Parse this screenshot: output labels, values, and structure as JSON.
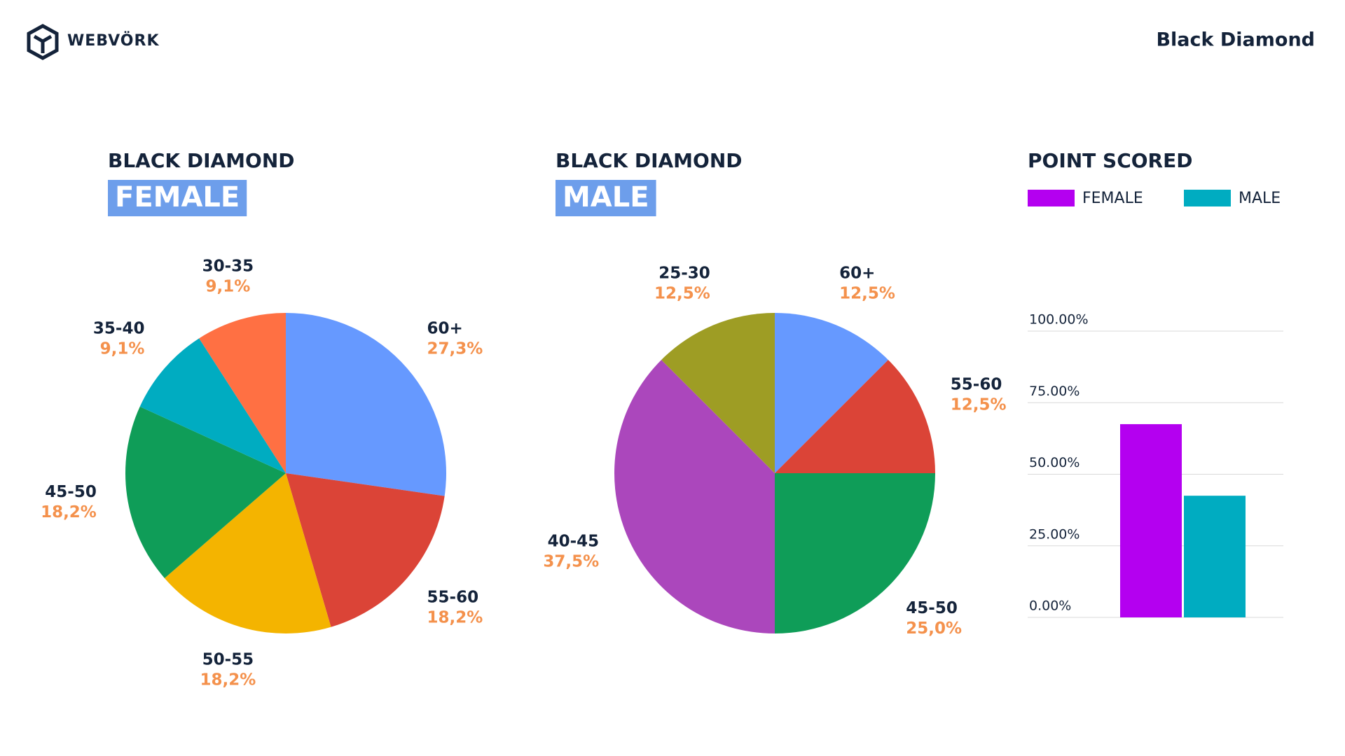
{
  "header": {
    "logo": "WEBVÖRK",
    "title": "Black Diamond"
  },
  "chart_data": [
    {
      "type": "pie",
      "title": "BLACK DIAMOND",
      "subtitle": "FEMALE",
      "categories": [
        "60+",
        "55-60",
        "50-55",
        "45-50",
        "35-40",
        "30-35"
      ],
      "values": [
        27.3,
        18.2,
        18.2,
        18.2,
        9.1,
        9.1
      ],
      "value_labels": [
        "27,3%",
        "18,2%",
        "18,2%",
        "18,2%",
        "9,1%",
        "9,1%"
      ],
      "colors": [
        "#6699ff",
        "#db4437",
        "#f4b400",
        "#0f9d58",
        "#00acc1",
        "#ff7043"
      ]
    },
    {
      "type": "pie",
      "title": "BLACK DIAMOND",
      "subtitle": "MALE",
      "categories": [
        "60+",
        "55-60",
        "45-50",
        "40-45",
        "25-30"
      ],
      "values": [
        12.5,
        12.5,
        25.0,
        37.5,
        12.5
      ],
      "value_labels": [
        "12,5%",
        "12,5%",
        "25,0%",
        "37,5%",
        "12,5%"
      ],
      "colors": [
        "#6699ff",
        "#db4437",
        "#0f9d58",
        "#ab47bc",
        "#9e9d24"
      ]
    },
    {
      "type": "bar",
      "title": "POINT SCORED",
      "categories": [
        null
      ],
      "series": [
        {
          "name": "FEMALE",
          "color": "#b400f0",
          "values": [
            67.5
          ]
        },
        {
          "name": "MALE",
          "color": "#00acc1",
          "values": [
            42.5
          ]
        }
      ],
      "ylim": [
        0,
        100
      ],
      "yticks": [
        {
          "value": 0,
          "label": "0.00%"
        },
        {
          "value": 25,
          "label": "25.00%"
        },
        {
          "value": 50,
          "label": "50.00%"
        },
        {
          "value": 75,
          "label": "75.00%"
        },
        {
          "value": 100,
          "label": "100.00%"
        }
      ],
      "grid": true
    }
  ]
}
